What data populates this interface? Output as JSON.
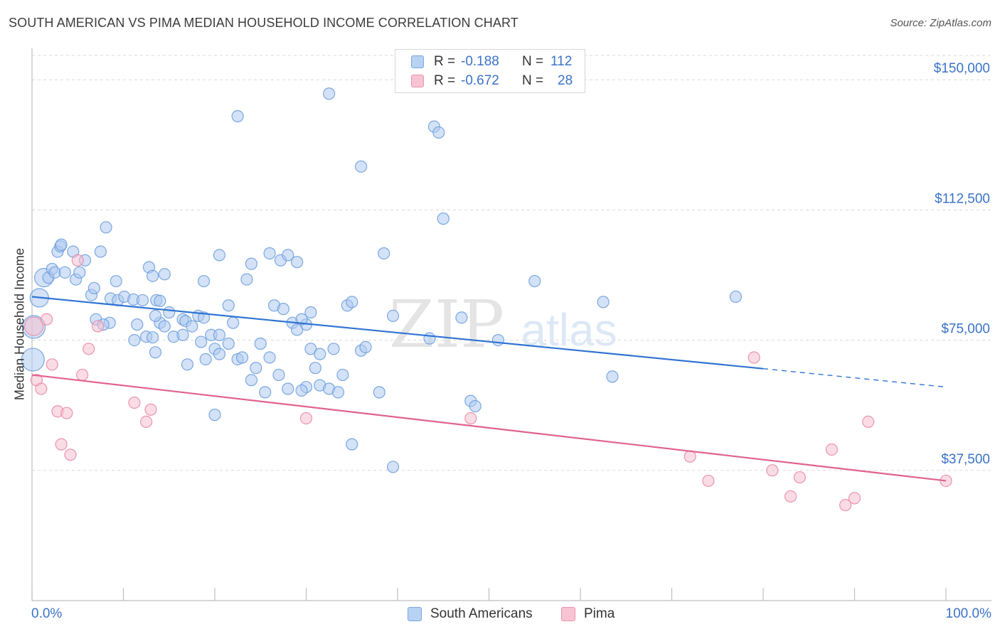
{
  "header": {
    "title": "SOUTH AMERICAN VS PIMA MEDIAN HOUSEHOLD INCOME CORRELATION CHART",
    "source": "Source: ZipAtlas.com"
  },
  "watermark": {
    "zip": "ZIP",
    "atlas": "atlas"
  },
  "legend": {
    "rows": [
      {
        "r_label": "R =",
        "r_value": "-0.188",
        "n_label": "N =",
        "n_value": "112",
        "color": "#b8d2f3"
      },
      {
        "r_label": "R =",
        "r_value": "-0.672",
        "n_label": "N =",
        "n_value": "28",
        "color": "#f8c4d3"
      }
    ]
  },
  "bottom_legend": {
    "series1": "South Americans",
    "series2": "Pima"
  },
  "colors": {
    "blue_fill": "#aecbf0",
    "blue_stroke": "#6e9fdc",
    "blue_line": "#2f73d2",
    "pink_fill": "#f6bfd0",
    "pink_stroke": "#e98aa8",
    "pink_line": "#e0628e",
    "axis_text": "#3a73c9",
    "grid": "#d9d9d9"
  },
  "chart_data": {
    "type": "scatter",
    "title": "SOUTH AMERICAN VS PIMA MEDIAN HOUSEHOLD INCOME CORRELATION CHART",
    "xlabel": "",
    "ylabel": "Median Household Income",
    "xlim": [
      0,
      100
    ],
    "ylim": [
      0,
      157000
    ],
    "x_tick_labels": [
      "0.0%",
      "100.0%"
    ],
    "y_ticks": [
      37500,
      75000,
      112500,
      150000
    ],
    "y_tick_labels": [
      "$37,500",
      "$75,000",
      "$112,500",
      "$150,000"
    ],
    "grid": true,
    "series": [
      {
        "name": "South Americans",
        "r": -0.188,
        "n": 112,
        "trend": {
          "x0": 0,
          "y0": 87500,
          "x1": 80,
          "y1": 66800,
          "dashed_to_x": 100,
          "dashed_to_y": 61500
        },
        "points": [
          [
            0.2,
            78800,
            3
          ],
          [
            0.1,
            69400,
            3
          ],
          [
            0.8,
            87200,
            2
          ],
          [
            1.3,
            93000,
            2
          ],
          [
            1.8,
            93000,
            1
          ],
          [
            2.2,
            95500,
            1
          ],
          [
            2.5,
            94500,
            1
          ],
          [
            2.8,
            100500,
            1
          ],
          [
            3.1,
            102000,
            1
          ],
          [
            3.6,
            94500,
            1
          ],
          [
            3.2,
            102500,
            1
          ],
          [
            4.5,
            100500,
            1
          ],
          [
            4.8,
            92500,
            1
          ],
          [
            5.2,
            94500,
            1
          ],
          [
            5.8,
            98000,
            1
          ],
          [
            6.5,
            88000,
            1
          ],
          [
            6.8,
            90000,
            1
          ],
          [
            7.5,
            100500,
            1
          ],
          [
            8.1,
            107500,
            1
          ],
          [
            8.6,
            87000,
            1
          ],
          [
            9.4,
            86500,
            1
          ],
          [
            9.2,
            92000,
            1
          ],
          [
            10.1,
            87500,
            1
          ],
          [
            11.1,
            86700,
            1
          ],
          [
            12.1,
            86500,
            1
          ],
          [
            12.8,
            96000,
            1
          ],
          [
            13.2,
            93500,
            1
          ],
          [
            14.5,
            94000,
            1
          ],
          [
            14.0,
            80000,
            1
          ],
          [
            13.6,
            86500,
            1
          ],
          [
            14.0,
            86300,
            1
          ],
          [
            11.5,
            79500,
            1
          ],
          [
            11.2,
            75000,
            1
          ],
          [
            7.0,
            81000,
            1
          ],
          [
            8.5,
            80000,
            1
          ],
          [
            7.8,
            79500,
            1
          ],
          [
            12.5,
            76000,
            1
          ],
          [
            13.2,
            75800,
            1
          ],
          [
            15.0,
            83000,
            1
          ],
          [
            16.5,
            81000,
            1
          ],
          [
            16.8,
            80500,
            1
          ],
          [
            17.5,
            79000,
            1
          ],
          [
            18.2,
            82000,
            1
          ],
          [
            18.8,
            81500,
            1
          ],
          [
            19.6,
            76500,
            1
          ],
          [
            20.0,
            72500,
            1
          ],
          [
            20.5,
            76500,
            1
          ],
          [
            21.5,
            85000,
            1
          ],
          [
            22.0,
            80000,
            1
          ],
          [
            21.5,
            74000,
            1
          ],
          [
            20.5,
            71000,
            1
          ],
          [
            19.0,
            69500,
            1
          ],
          [
            18.5,
            74500,
            1
          ],
          [
            22.5,
            69500,
            1
          ],
          [
            23.0,
            70000,
            1
          ],
          [
            24.5,
            67000,
            1
          ],
          [
            25.0,
            74000,
            1
          ],
          [
            26.0,
            70000,
            1
          ],
          [
            26.5,
            85000,
            1
          ],
          [
            27.5,
            84000,
            1
          ],
          [
            28.5,
            80000,
            1
          ],
          [
            29.0,
            78000,
            1
          ],
          [
            30.0,
            79500,
            1
          ],
          [
            30.5,
            72500,
            1
          ],
          [
            31.5,
            71000,
            1
          ],
          [
            33.0,
            72500,
            1
          ],
          [
            34.5,
            85000,
            1
          ],
          [
            35.0,
            86000,
            1
          ],
          [
            26.0,
            100000,
            1
          ],
          [
            20.5,
            99500,
            1
          ],
          [
            18.8,
            92000,
            1
          ],
          [
            13.5,
            82000,
            1
          ],
          [
            14.5,
            79000,
            1
          ],
          [
            15.5,
            76000,
            1
          ],
          [
            16.5,
            76500,
            1
          ],
          [
            17.0,
            68000,
            1
          ],
          [
            13.5,
            71500,
            1
          ],
          [
            23.5,
            92500,
            1
          ],
          [
            24.0,
            97000,
            1
          ],
          [
            27.2,
            98000,
            1
          ],
          [
            28.0,
            99500,
            1
          ],
          [
            29.0,
            97500,
            1
          ],
          [
            29.5,
            81000,
            1
          ],
          [
            30.5,
            83000,
            1
          ],
          [
            31.5,
            62000,
            1
          ],
          [
            24.0,
            63500,
            1
          ],
          [
            25.5,
            60000,
            1
          ],
          [
            27.0,
            65000,
            1
          ],
          [
            28.0,
            61000,
            1
          ],
          [
            30.0,
            61500,
            1
          ],
          [
            32.5,
            61000,
            1
          ],
          [
            33.5,
            60000,
            1
          ],
          [
            34.0,
            65000,
            1
          ],
          [
            36.0,
            72000,
            1
          ],
          [
            36.5,
            73000,
            1
          ],
          [
            31.0,
            67000,
            1
          ],
          [
            29.5,
            60500,
            1
          ],
          [
            38.0,
            60000,
            1
          ],
          [
            39.5,
            82000,
            1
          ],
          [
            38.5,
            100000,
            1
          ],
          [
            22.5,
            139500,
            1
          ],
          [
            32.5,
            146000,
            1
          ],
          [
            36.0,
            125000,
            1
          ],
          [
            44.0,
            136500,
            1
          ],
          [
            44.5,
            134800,
            1
          ],
          [
            45.0,
            110000,
            1
          ],
          [
            47.0,
            81500,
            1
          ],
          [
            51.0,
            75000,
            1
          ],
          [
            55.0,
            92000,
            1
          ],
          [
            62.5,
            86000,
            1
          ],
          [
            77.0,
            87500,
            1
          ],
          [
            48.0,
            57500,
            1
          ],
          [
            48.5,
            56000,
            1
          ],
          [
            63.5,
            64500,
            1
          ],
          [
            35.0,
            45000,
            1
          ],
          [
            39.5,
            38500,
            1
          ],
          [
            20.0,
            53500,
            1
          ],
          [
            43.5,
            75500,
            1
          ]
        ]
      },
      {
        "name": "Pima",
        "r": -0.672,
        "n": 28,
        "trend": {
          "x0": 0,
          "y0": 65000,
          "x1": 100,
          "y1": 34500
        },
        "points": [
          [
            0.2,
            79000,
            2
          ],
          [
            0.5,
            63500,
            1
          ],
          [
            1.0,
            61000,
            1
          ],
          [
            1.6,
            81000,
            1
          ],
          [
            2.2,
            68000,
            1
          ],
          [
            2.8,
            54500,
            1
          ],
          [
            3.2,
            45000,
            1
          ],
          [
            3.8,
            54000,
            1
          ],
          [
            4.2,
            42000,
            1
          ],
          [
            5.0,
            98000,
            1
          ],
          [
            5.5,
            65000,
            1
          ],
          [
            6.2,
            72500,
            1
          ],
          [
            7.2,
            79000,
            1
          ],
          [
            11.2,
            57000,
            1
          ],
          [
            12.5,
            51500,
            1
          ],
          [
            13.0,
            55000,
            1
          ],
          [
            30.0,
            52500,
            1
          ],
          [
            48.0,
            52500,
            1
          ],
          [
            72.0,
            41500,
            1
          ],
          [
            74.0,
            34500,
            1
          ],
          [
            79.0,
            70000,
            1
          ],
          [
            81.0,
            37500,
            1
          ],
          [
            83.0,
            30000,
            1
          ],
          [
            84.0,
            35500,
            1
          ],
          [
            87.5,
            43500,
            1
          ],
          [
            89.0,
            27500,
            1
          ],
          [
            90.0,
            29500,
            1
          ],
          [
            91.5,
            51500,
            1
          ],
          [
            100.0,
            34500,
            1
          ]
        ]
      }
    ]
  }
}
